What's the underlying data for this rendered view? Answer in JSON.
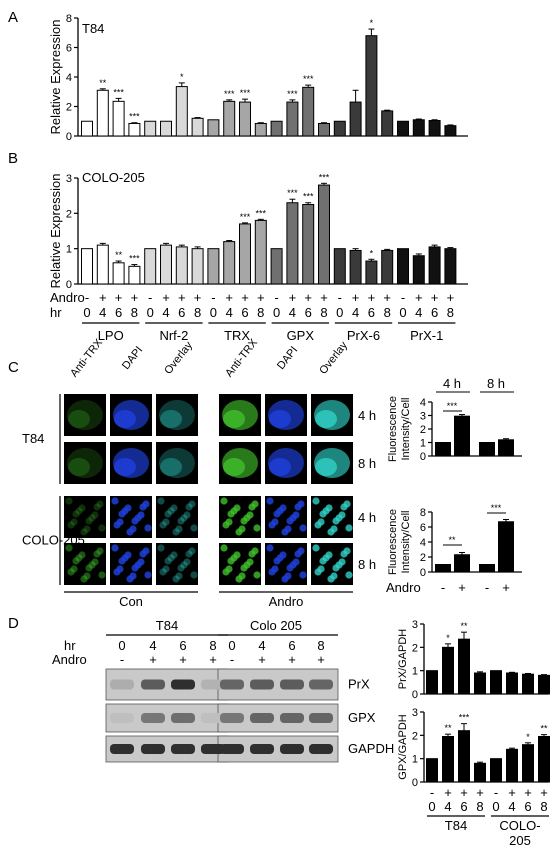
{
  "panels": {
    "A": {
      "label": "A",
      "cell_line": "T84"
    },
    "B": {
      "label": "B",
      "cell_line": "COLO-205"
    },
    "C": {
      "label": "C"
    },
    "D": {
      "label": "D"
    }
  },
  "chart_data": [
    {
      "id": "panelA",
      "type": "bar",
      "ylabel": "Relative Expression",
      "ylim": [
        0,
        8
      ],
      "yticks": [
        "0",
        "2",
        "4",
        "6",
        "8"
      ],
      "categories": [
        "LPO 0",
        "LPO 4",
        "LPO 6",
        "LPO 8",
        "Nrf-2 0",
        "Nrf-2 4",
        "Nrf-2 6",
        "Nrf-2 8",
        "TRX 0",
        "TRX 4",
        "TRX 6",
        "TRX 8",
        "GPX 0",
        "GPX 4",
        "GPX 6",
        "GPX 8",
        "PrX-6 0",
        "PrX-6 4",
        "PrX-6 6",
        "PrX-6 8",
        "PrX-1 0",
        "PrX-1 4",
        "PrX-1 6",
        "PrX-1 8"
      ],
      "values": [
        1.0,
        3.1,
        2.35,
        0.85,
        1.0,
        1.0,
        3.35,
        1.2,
        1.1,
        2.35,
        2.3,
        0.85,
        1.0,
        2.3,
        3.3,
        0.85,
        1.0,
        2.3,
        6.8,
        1.7,
        1.0,
        1.1,
        1.05,
        0.7
      ],
      "errors": [
        0,
        0.1,
        0.2,
        0.05,
        0,
        0,
        0.25,
        0.05,
        0,
        0.1,
        0.2,
        0.05,
        0,
        0.15,
        0.15,
        0.05,
        0,
        0.8,
        0.45,
        0.05,
        0,
        0.05,
        0.05,
        0.05
      ],
      "significance": [
        "",
        "**",
        "***",
        "***",
        "",
        "",
        "*",
        "",
        "",
        "***",
        "***",
        "",
        "",
        "***",
        "***",
        "",
        "",
        "",
        "*",
        "",
        "",
        "",
        "",
        ""
      ]
    },
    {
      "id": "panelB",
      "type": "bar",
      "ylabel": "Relative Expression",
      "ylim": [
        0,
        3
      ],
      "yticks": [
        "0",
        "1",
        "2",
        "3"
      ],
      "categories": [
        "LPO 0",
        "LPO 4",
        "LPO 6",
        "LPO 8",
        "Nrf-2 0",
        "Nrf-2 4",
        "Nrf-2 6",
        "Nrf-2 8",
        "TRX 0",
        "TRX 4",
        "TRX 6",
        "TRX 8",
        "GPX 0",
        "GPX 4",
        "GPX 6",
        "GPX 8",
        "PrX-6 0",
        "PrX-6 4",
        "PrX-6 6",
        "PrX-6 8",
        "PrX-1 0",
        "PrX-1 4",
        "PrX-1 6",
        "PrX-1 8"
      ],
      "values": [
        1.0,
        1.1,
        0.6,
        0.5,
        1.0,
        1.1,
        1.05,
        1.0,
        1.0,
        1.2,
        1.7,
        1.8,
        1.0,
        2.3,
        2.25,
        2.8,
        1.0,
        0.95,
        0.65,
        0.95,
        1.0,
        0.8,
        1.05,
        1.0
      ],
      "errors": [
        0,
        0.05,
        0.05,
        0.05,
        0,
        0.05,
        0.05,
        0.05,
        0,
        0.03,
        0.03,
        0.03,
        0,
        0.1,
        0.05,
        0.05,
        0,
        0.05,
        0.05,
        0.03,
        0,
        0.05,
        0.05,
        0.03
      ],
      "significance": [
        "",
        "",
        "**",
        "***",
        "",
        "",
        "",
        "",
        "",
        "",
        "***",
        "***",
        "",
        "***",
        "***",
        "***",
        "",
        "",
        "*",
        "",
        "",
        "",
        "",
        ""
      ],
      "row_labels": {
        "andro": "Andro",
        "hr": "hr"
      },
      "andro_marks": [
        "-",
        "+",
        "+",
        "+"
      ],
      "hr_marks": [
        "0",
        "4",
        "6",
        "8"
      ],
      "groups": [
        "LPO",
        "Nrf-2",
        "TRX",
        "GPX",
        "PrX-6",
        "PrX-1"
      ]
    },
    {
      "id": "panelC_T84",
      "type": "bar",
      "ylabel": "Fluorescence Intensity/Cell",
      "ylim": [
        0,
        4
      ],
      "yticks": [
        "0",
        "1",
        "2",
        "3",
        "4"
      ],
      "categories": [
        "4h -",
        "4h +",
        "8h -",
        "8h +"
      ],
      "values": [
        1.0,
        2.95,
        1.0,
        1.2
      ],
      "errors": [
        0,
        0.12,
        0,
        0.08
      ],
      "time_labels": [
        "4 h",
        "8 h"
      ],
      "sig_labels": [
        "***"
      ]
    },
    {
      "id": "panelC_COLO",
      "type": "bar",
      "ylabel": "Fluorescence Intensity/Cell",
      "ylim": [
        0,
        8
      ],
      "yticks": [
        "0",
        "2",
        "4",
        "6",
        "8"
      ],
      "categories": [
        "4h -",
        "4h +",
        "8h -",
        "8h +"
      ],
      "values": [
        1.0,
        2.3,
        1.0,
        6.7
      ],
      "errors": [
        0,
        0.3,
        0,
        0.3
      ],
      "sig_labels": [
        "**",
        "***"
      ],
      "xlabel": "Andro",
      "x_marks": [
        "-",
        "+",
        "-",
        "+"
      ]
    },
    {
      "id": "panelD_PrX",
      "type": "bar",
      "ylabel": "PrX/GAPDH",
      "ylim": [
        0,
        3
      ],
      "yticks": [
        "0",
        "1",
        "2",
        "3"
      ],
      "categories": [
        "T84 0",
        "T84 4",
        "T84 6",
        "T84 8",
        "COLO 0",
        "COLO 4",
        "COLO 6",
        "COLO 8"
      ],
      "values": [
        1.0,
        2.0,
        2.35,
        0.9,
        1.0,
        0.9,
        0.85,
        0.8
      ],
      "errors": [
        0,
        0.15,
        0.3,
        0.05,
        0,
        0.03,
        0.03,
        0.03
      ],
      "significance": [
        "",
        "*",
        "**",
        "",
        "",
        "",
        "",
        ""
      ]
    },
    {
      "id": "panelD_GPX",
      "type": "bar",
      "ylabel": "GPX/GAPDH",
      "ylim": [
        0,
        3
      ],
      "yticks": [
        "0",
        "1",
        "2",
        "3"
      ],
      "categories": [
        "T84 0",
        "T84 4",
        "T84 6",
        "T84 8",
        "COLO 0",
        "COLO 4",
        "COLO 6",
        "COLO 8"
      ],
      "values": [
        1.0,
        1.95,
        2.2,
        0.8,
        1.0,
        1.4,
        1.6,
        1.95
      ],
      "errors": [
        0,
        0.1,
        0.3,
        0.05,
        0,
        0.05,
        0.08,
        0.08
      ],
      "significance": [
        "",
        "**",
        "***",
        "",
        "",
        "",
        "*",
        "**"
      ],
      "andro_marks": [
        "-",
        "+",
        "+",
        "+",
        "-",
        "+",
        "+",
        "+"
      ],
      "hr_marks": [
        "0",
        "4",
        "6",
        "8",
        "0",
        "4",
        "6",
        "8"
      ],
      "groups": [
        "T84",
        "COLO-"
      ],
      "group_suffix": "205"
    }
  ],
  "microscopy": {
    "channel_headers": [
      "Anti-TRX",
      "DAPI",
      "Overlay",
      "Anti-TRX",
      "DAPI",
      "Overlay"
    ],
    "rows": [
      {
        "cell_line": "T84",
        "times": [
          "4 h",
          "8 h"
        ]
      },
      {
        "cell_line": "COLO-205",
        "times": [
          "4 h",
          "8 h"
        ]
      }
    ],
    "conditions": [
      "Con",
      "Andro"
    ],
    "colors": {
      "green": "#3fbf2a",
      "blue": "#1e3fd8",
      "cyan": "#2fd1c6"
    }
  },
  "blot": {
    "groups": [
      "T84",
      "Colo 205"
    ],
    "row_labels": {
      "hr": "hr",
      "andro": "Andro"
    },
    "hr_marks": [
      "0",
      "4",
      "6",
      "8",
      "0",
      "4",
      "6",
      "8"
    ],
    "andro_marks": [
      "-",
      "+",
      "+",
      "+",
      "-",
      "+",
      "+",
      "+"
    ],
    "bands": [
      "PrX",
      "GPX",
      "GAPDH"
    ],
    "intensity": {
      "PrX": [
        0.15,
        0.6,
        0.85,
        0.12,
        0.55,
        0.6,
        0.6,
        0.55
      ],
      "GPX": [
        0.05,
        0.45,
        0.5,
        0.05,
        0.45,
        0.55,
        0.55,
        0.55
      ],
      "GAPDH": [
        0.85,
        0.85,
        0.85,
        0.85,
        0.85,
        0.85,
        0.85,
        0.85
      ]
    }
  }
}
